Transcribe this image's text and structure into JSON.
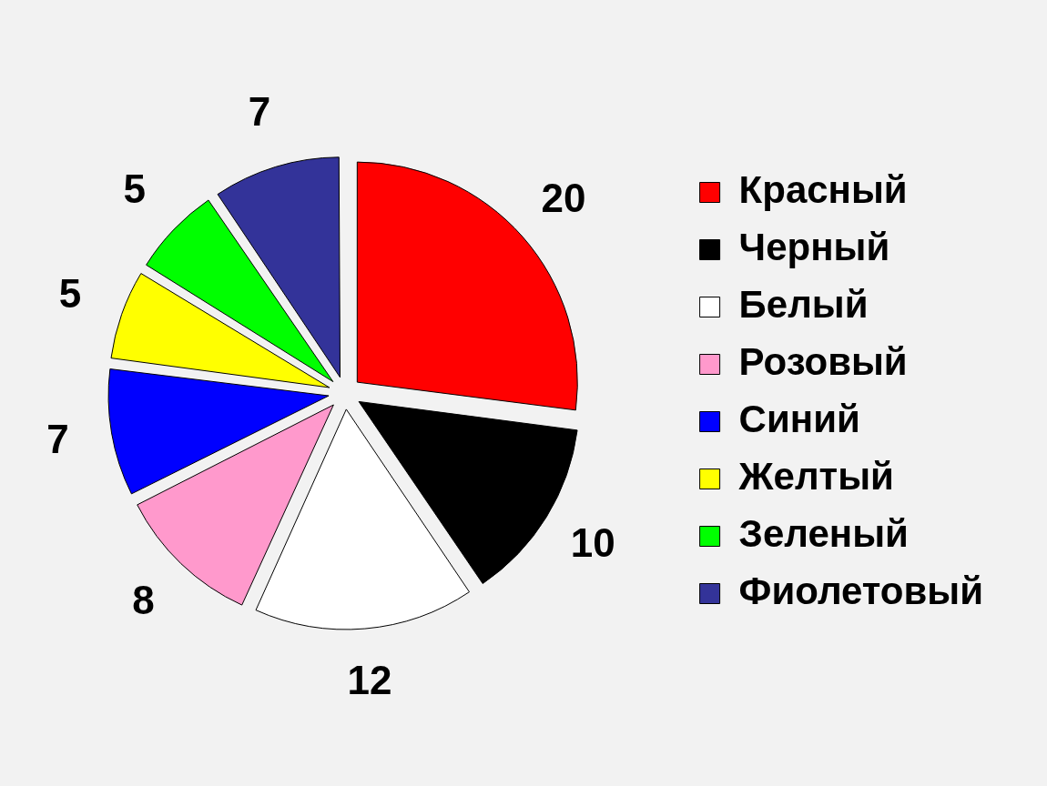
{
  "chart_data": {
    "type": "pie",
    "categories": [
      "Красный",
      "Черный",
      "Белый",
      "Розовый",
      "Синий",
      "Желтый",
      "Зеленый",
      "Фиолетовый"
    ],
    "values": [
      20,
      10,
      12,
      8,
      7,
      5,
      5,
      7
    ],
    "colors": [
      "#ff0000",
      "#000000",
      "#ffffff",
      "#ff99cc",
      "#0000ff",
      "#ffff00",
      "#00ff00",
      "#333399"
    ],
    "data_labels": true,
    "legend": "right"
  }
}
